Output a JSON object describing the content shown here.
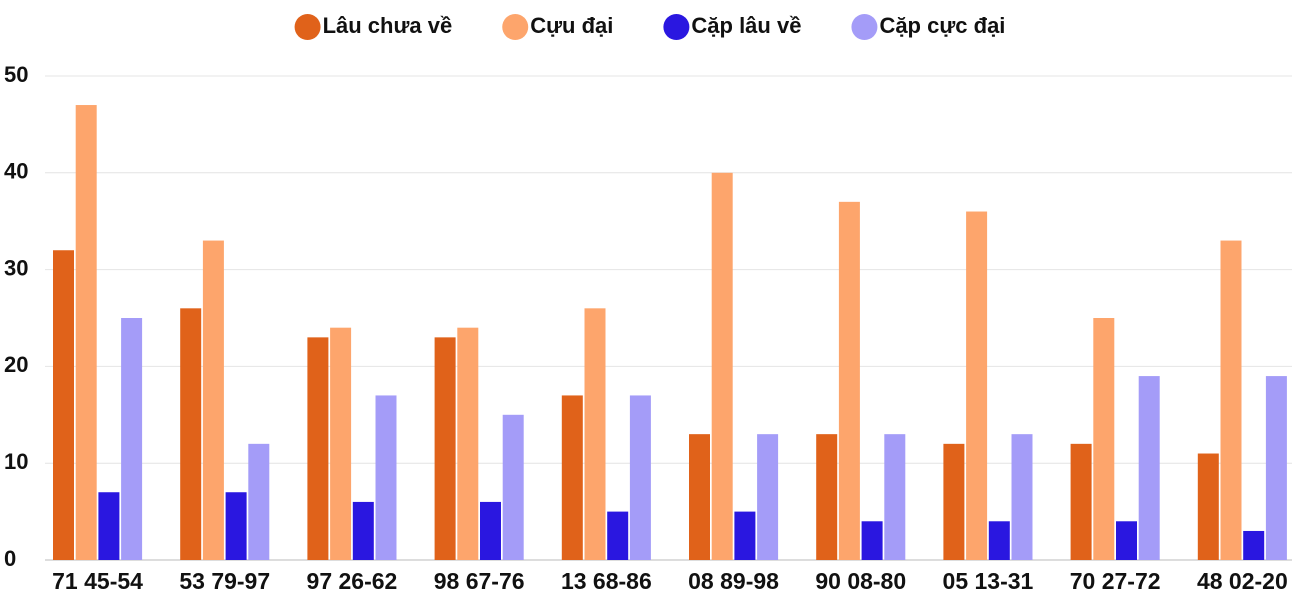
{
  "chart_data": {
    "type": "bar",
    "categories": [
      "71 45-54",
      "53 79-97",
      "97 26-62",
      "98 67-76",
      "13 68-86",
      "08 89-98",
      "90 08-80",
      "05 13-31",
      "70 27-72",
      "48 02-20"
    ],
    "series": [
      {
        "name": "Lâu chưa về",
        "color": "#e0621a",
        "values": [
          32,
          26,
          23,
          23,
          17,
          13,
          13,
          12,
          12,
          11
        ]
      },
      {
        "name": "Cựu đại",
        "color": "#fda56c",
        "values": [
          47,
          33,
          24,
          24,
          26,
          40,
          37,
          36,
          25,
          33
        ]
      },
      {
        "name": "Cặp lâu về",
        "color": "#2a17e0",
        "values": [
          7,
          7,
          6,
          6,
          5,
          5,
          4,
          4,
          4,
          3
        ]
      },
      {
        "name": "Cặp cực đại",
        "color": "#a49cf8",
        "values": [
          25,
          12,
          17,
          15,
          17,
          13,
          13,
          13,
          19,
          19
        ]
      }
    ],
    "ylim": [
      0,
      50
    ],
    "yticks": [
      0,
      10,
      20,
      30,
      40,
      50
    ],
    "grid": true,
    "legend": "top"
  }
}
